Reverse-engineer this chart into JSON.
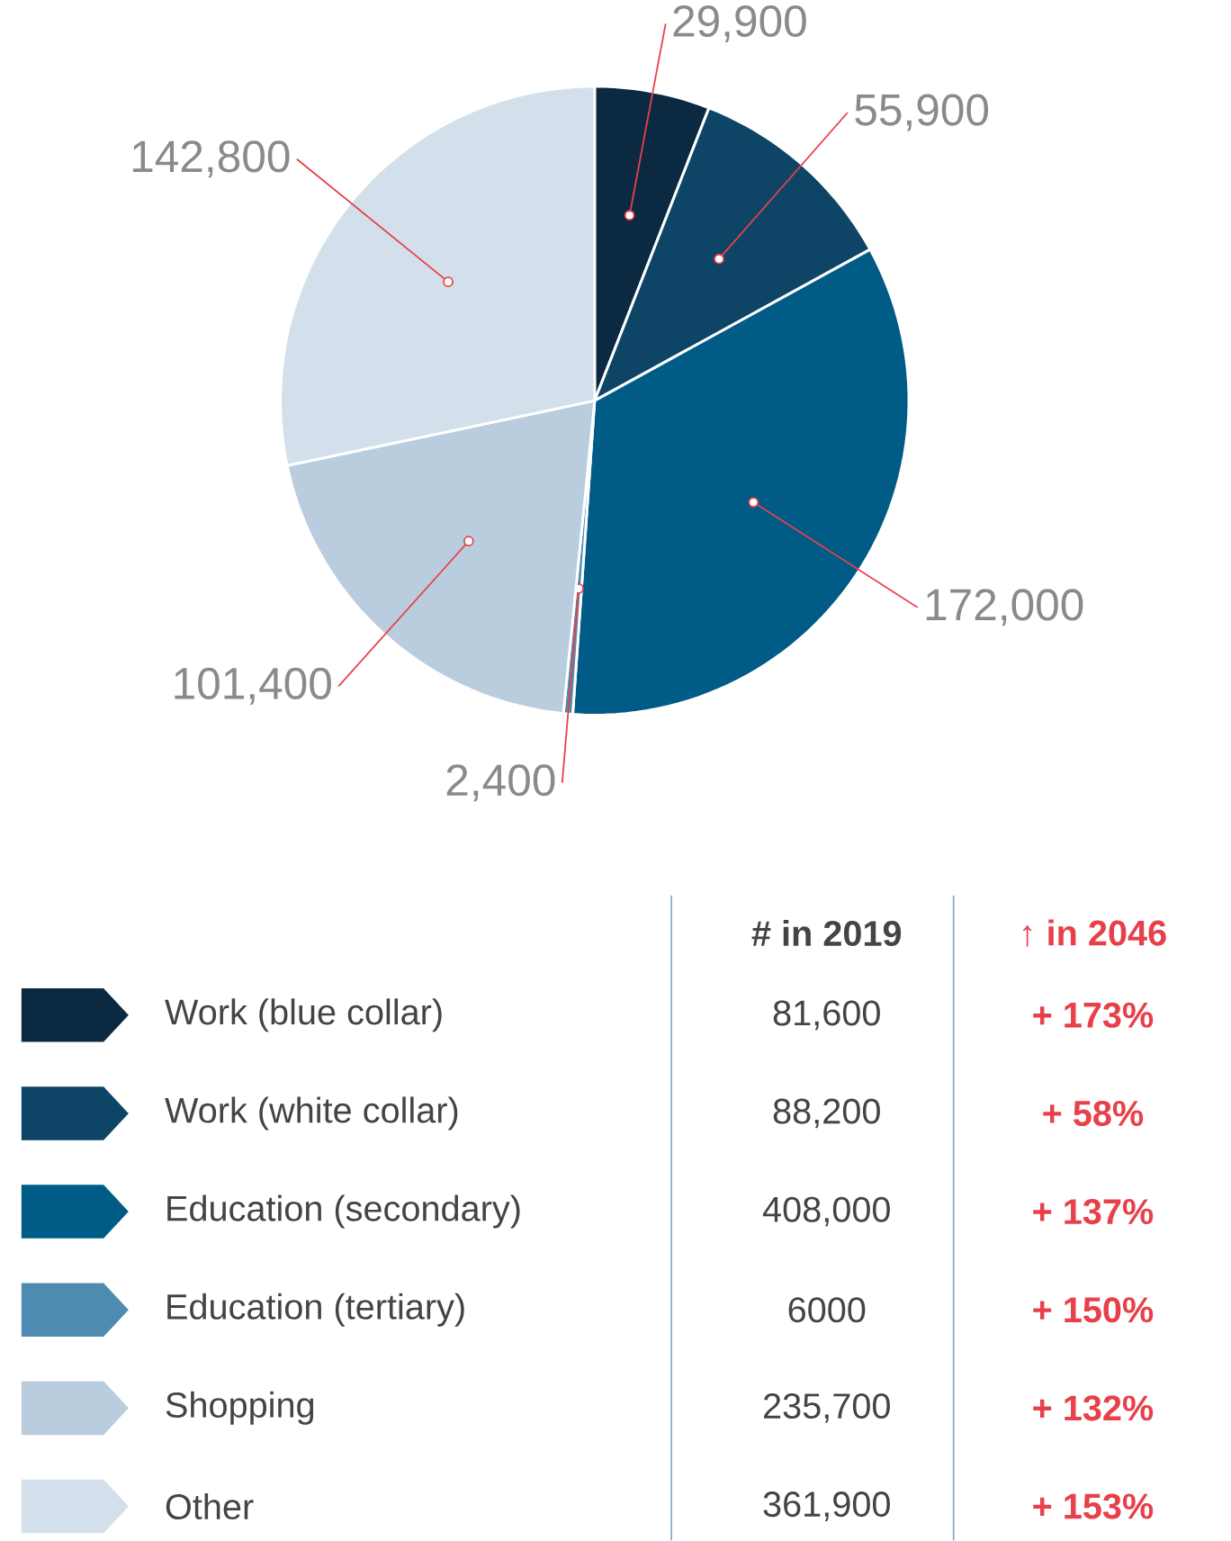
{
  "chart_data": [
    {
      "type": "pie",
      "categories": [
        "Work (blue collar)",
        "Work (white collar)",
        "Education (secondary)",
        "Education (tertiary)",
        "Shopping",
        "Other"
      ],
      "values": [
        29900,
        55900,
        172000,
        2400,
        101400,
        142800
      ],
      "value_labels": [
        "29,900",
        "55,900",
        "172,000",
        "2,400",
        "101,400",
        "142,800"
      ],
      "colors": [
        "#0b2a42",
        "#0e4566",
        "#005b86",
        "#4e8bb0",
        "#b9cddf",
        "#d3e0ec"
      ],
      "legend": "bottom"
    },
    {
      "type": "other",
      "annotations": [
        "# in 2019",
        "↑ in 2046",
        "81,600",
        "+ 173%",
        "88,200",
        "+ 58%",
        "408,000",
        "+ 137%",
        "6000",
        "+ 150%",
        "235,700",
        "+ 132%",
        "361,900",
        "+ 153%"
      ]
    }
  ]
}
